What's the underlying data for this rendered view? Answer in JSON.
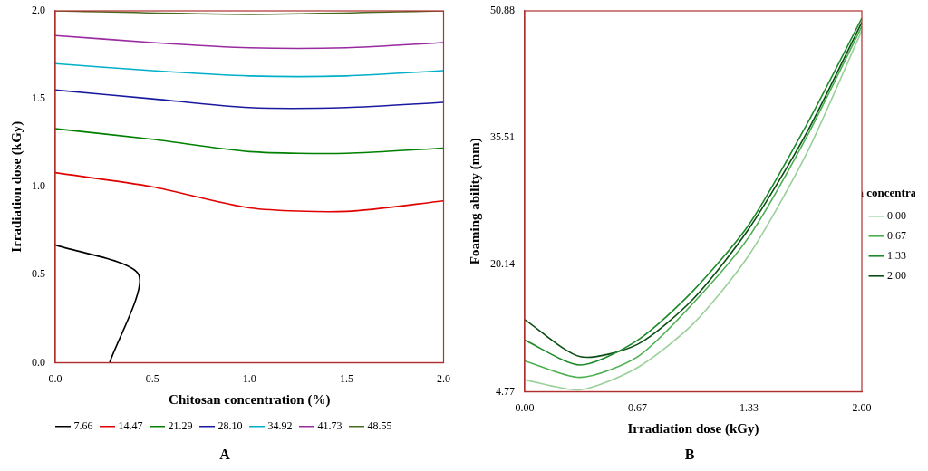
{
  "chart_data": [
    {
      "type": "line",
      "title": "A",
      "x_label": "Chitosan concentration (%)",
      "y_label": "Irradiation dose (kGy)",
      "xlim": [
        0,
        2
      ],
      "ylim": [
        0,
        2
      ],
      "xticks": [
        {
          "value": 0,
          "label": "0.0"
        },
        {
          "value": 0.5,
          "label": "0.5"
        },
        {
          "value": 1,
          "label": "1.0"
        },
        {
          "value": 1.5,
          "label": "1.5"
        },
        {
          "value": 2,
          "label": "2.0"
        }
      ],
      "yticks": [
        {
          "value": 0,
          "label": "0.0"
        },
        {
          "value": 0.5,
          "label": "0.5"
        },
        {
          "value": 1,
          "label": "1.0"
        },
        {
          "value": 1.5,
          "label": "1.5"
        },
        {
          "value": 2,
          "label": "2.0"
        }
      ],
      "grid": false,
      "legend": "bottom",
      "series": [
        {
          "name": "7.66",
          "color": "#000000",
          "x": [
            0,
            0.43,
            0.28
          ],
          "values": [
            0.67,
            0.5,
            0
          ]
        },
        {
          "name": "14.47",
          "color": "#e00000",
          "x": [
            0,
            0.5,
            1,
            1.5,
            2
          ],
          "values": [
            1.08,
            1.0,
            0.88,
            0.86,
            0.92
          ]
        },
        {
          "name": "21.29",
          "color": "#008000",
          "x": [
            0,
            0.5,
            1,
            1.5,
            2
          ],
          "values": [
            1.33,
            1.27,
            1.2,
            1.19,
            1.22
          ]
        },
        {
          "name": "28.10",
          "color": "#1a1aa0",
          "x": [
            0,
            0.5,
            1,
            1.5,
            2
          ],
          "values": [
            1.55,
            1.5,
            1.45,
            1.45,
            1.48
          ]
        },
        {
          "name": "34.92",
          "color": "#00b0c8",
          "x": [
            0,
            0.5,
            1,
            1.5,
            2
          ],
          "values": [
            1.7,
            1.66,
            1.63,
            1.63,
            1.66
          ]
        },
        {
          "name": "41.73",
          "color": "#9a2aa0",
          "x": [
            0,
            0.5,
            1,
            1.5,
            2
          ],
          "values": [
            1.86,
            1.82,
            1.79,
            1.79,
            1.82
          ]
        },
        {
          "name": "48.55",
          "color": "#4a6a20",
          "x": [
            0,
            1,
            2
          ],
          "values": [
            2.0,
            1.98,
            2.0
          ]
        }
      ]
    },
    {
      "type": "line",
      "title": "B",
      "x_label": "Irradiation dose (kGy)",
      "y_label": "Foaming ability (mm)",
      "z_label": "Chitosan concentration (%)",
      "xlim": [
        0,
        2
      ],
      "ylim": [
        4.77,
        50.88
      ],
      "xticks": [
        {
          "value": 0,
          "label": "0.00"
        },
        {
          "value": 0.67,
          "label": "0.67"
        },
        {
          "value": 1.33,
          "label": "1.33"
        },
        {
          "value": 2,
          "label": "2.00"
        }
      ],
      "yticks": [
        4.77,
        20.14,
        35.51,
        50.88
      ],
      "grid": false,
      "legend": "right",
      "x": [
        0,
        0.33,
        0.67,
        1.0,
        1.33,
        1.67,
        2.0
      ],
      "series": [
        {
          "name": "0.00",
          "color": "#9ad09a",
          "values": [
            6.2,
            5.0,
            7.7,
            13.0,
            21.3,
            33.5,
            48.5
          ]
        },
        {
          "name": "0.67",
          "color": "#4caf50",
          "values": [
            8.5,
            6.5,
            9.0,
            15.5,
            23.5,
            35.5,
            49.0
          ]
        },
        {
          "name": "1.33",
          "color": "#1e8a2a",
          "values": [
            11.0,
            8.0,
            11.0,
            17.0,
            25.0,
            37.0,
            50.0
          ]
        },
        {
          "name": "2.00",
          "color": "#0b4d14",
          "values": [
            13.5,
            9.0,
            10.5,
            16.0,
            24.5,
            36.0,
            49.5
          ]
        }
      ]
    }
  ]
}
